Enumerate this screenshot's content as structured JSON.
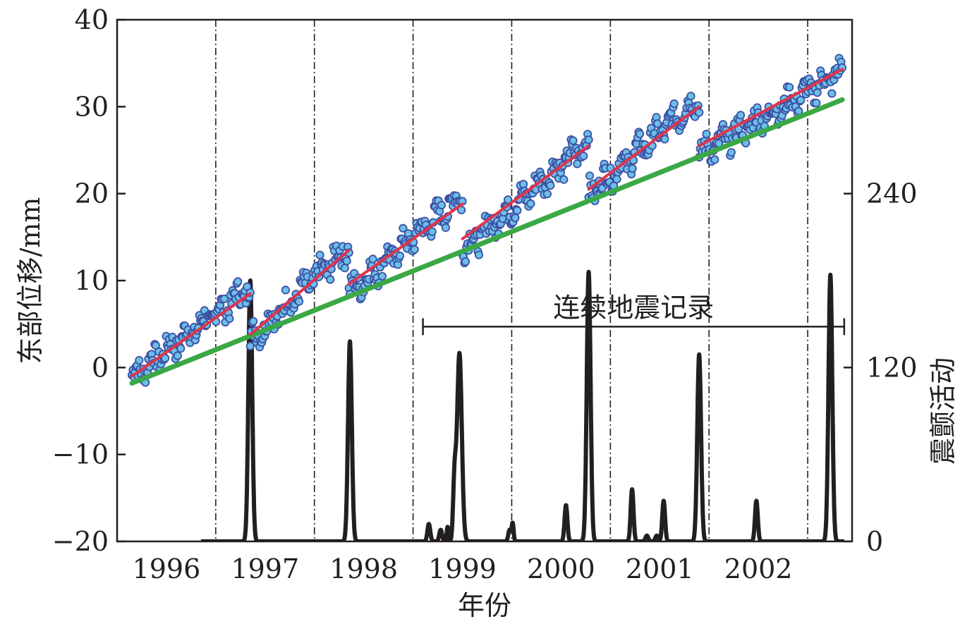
{
  "chart_data": {
    "type": "line",
    "xlabel": "年份",
    "ylabel_left": "东部位移/mm",
    "ylabel_right": "震颤活动",
    "x_ticks": [
      "1996",
      "1997",
      "1998",
      "1999",
      "2000",
      "2001",
      "2002"
    ],
    "y_left_ticks": [
      "40",
      "30",
      "20",
      "10",
      "0",
      "−10",
      "−20"
    ],
    "y_right_ticks": [
      "240",
      "120",
      "0"
    ],
    "y_left_range": [
      -20,
      40
    ],
    "y_right_range": [
      0,
      360
    ],
    "x_range": [
      1995.7,
      2003.15
    ],
    "grid": false,
    "legend": "none",
    "annotation": {
      "text": "连续地震记录",
      "x_start": 1998.8,
      "x_end": 2003.07,
      "y": 4.7
    },
    "event_lines_x": [
      1996.7,
      1997.7,
      1998.7,
      1999.7,
      2000.7,
      2001.7,
      2002.7
    ],
    "colors": {
      "axis": "#231f20",
      "gps_points_fill": "#6bbfe8",
      "gps_points_edge": "#3d4fa3",
      "inter_event_trend": "#e0344b",
      "long_term_trend": "#3ba845",
      "tremor": "#231f20"
    },
    "series": [
      {
        "role": "long_term_trend",
        "axis": "left",
        "x": [
          1995.85,
          2003.05
        ],
        "y": [
          -1.8,
          30.8
        ]
      },
      {
        "role": "inter_event_trend",
        "axis": "left",
        "segments": [
          {
            "x": [
              1995.85,
              1997.05
            ],
            "y": [
              -1.0,
              8.5
            ]
          },
          {
            "x": [
              1997.05,
              1998.05
            ],
            "y": [
              3.8,
              13.5
            ]
          },
          {
            "x": [
              1998.05,
              1999.2
            ],
            "y": [
              9.6,
              18.8
            ]
          },
          {
            "x": [
              1999.2,
              2000.48
            ],
            "y": [
              14.8,
              25.5
            ]
          },
          {
            "x": [
              2000.48,
              2001.6
            ],
            "y": [
              20.5,
              30.0
            ]
          },
          {
            "x": [
              2001.6,
              2003.05
            ],
            "y": [
              25.5,
              34.3
            ]
          }
        ]
      },
      {
        "role": "gps_east_displacement",
        "axis": "left",
        "sawtooth": [
          {
            "x0": 1995.85,
            "x1": 1997.05,
            "y0": -1.0,
            "y1": 9.2
          },
          {
            "x0": 1997.05,
            "x1": 1998.05,
            "y0": 3.2,
            "y1": 14.0
          },
          {
            "x0": 1998.05,
            "x1": 1999.2,
            "y0": 8.6,
            "y1": 19.8
          },
          {
            "x0": 1999.2,
            "x1": 2000.48,
            "y0": 13.5,
            "y1": 26.0
          },
          {
            "x0": 2000.48,
            "x1": 2001.6,
            "y0": 20.0,
            "y1": 31.0
          },
          {
            "x0": 2001.6,
            "x1": 2003.05,
            "y0": 24.5,
            "y1": 34.0
          }
        ]
      },
      {
        "role": "tremor_activity",
        "axis": "right",
        "events": [
          {
            "x": 1997.05,
            "peak": 180,
            "width": 0.04
          },
          {
            "x": 1998.06,
            "peak": 138,
            "width": 0.04
          },
          {
            "x": 1999.17,
            "peak": 130,
            "width": 0.05
          },
          {
            "x": 1999.12,
            "peak": 40,
            "width": 0.03
          },
          {
            "x": 1998.98,
            "peak": 8,
            "width": 0.03
          },
          {
            "x": 1999.05,
            "peak": 10,
            "width": 0.02
          },
          {
            "x": 1998.86,
            "peak": 12,
            "width": 0.03
          },
          {
            "x": 1999.68,
            "peak": 8,
            "width": 0.03
          },
          {
            "x": 1999.71,
            "peak": 12,
            "width": 0.02
          },
          {
            "x": 2000.25,
            "peak": 25,
            "width": 0.03
          },
          {
            "x": 2000.48,
            "peak": 186,
            "width": 0.04
          },
          {
            "x": 2000.92,
            "peak": 36,
            "width": 0.03
          },
          {
            "x": 2001.07,
            "peak": 4,
            "width": 0.03
          },
          {
            "x": 2001.24,
            "peak": 28,
            "width": 0.03
          },
          {
            "x": 2001.17,
            "peak": 4,
            "width": 0.03
          },
          {
            "x": 2001.6,
            "peak": 129,
            "width": 0.04
          },
          {
            "x": 2002.18,
            "peak": 28,
            "width": 0.03
          },
          {
            "x": 2002.93,
            "peak": 184,
            "width": 0.04
          }
        ]
      }
    ]
  }
}
